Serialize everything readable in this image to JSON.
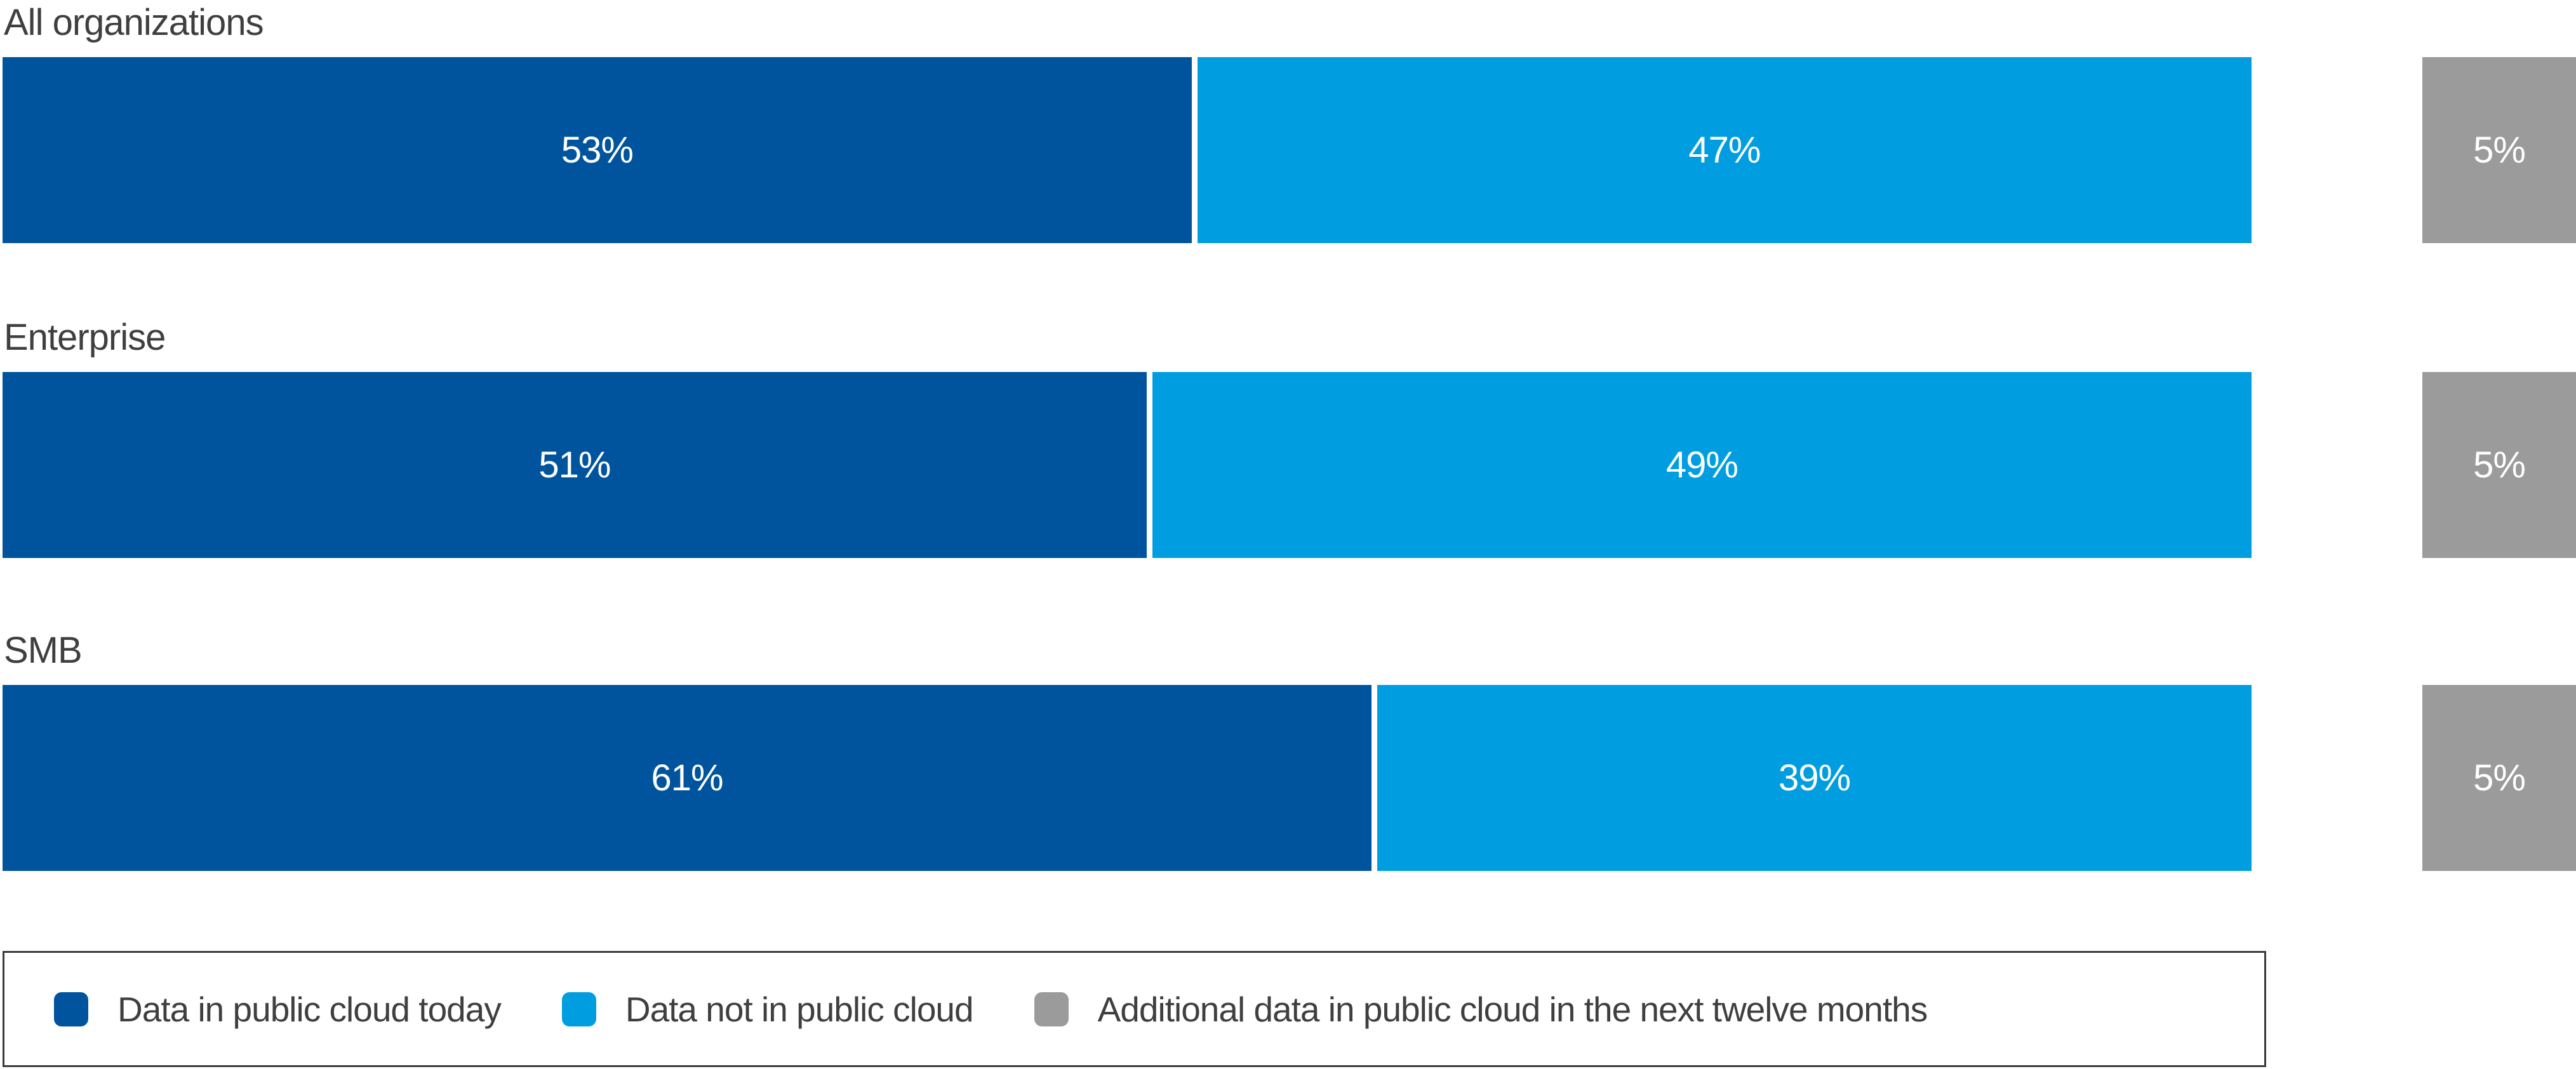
{
  "chart_data": {
    "type": "bar",
    "stacked": true,
    "orientation": "horizontal",
    "categories": [
      "All organizations",
      "Enterprise",
      "SMB"
    ],
    "series": [
      {
        "name": "Data in public cloud today",
        "color": "#00549D",
        "values": [
          53,
          51,
          61
        ]
      },
      {
        "name": "Data not in public cloud",
        "color": "#009EE0",
        "values": [
          47,
          49,
          39
        ]
      },
      {
        "name": "Additional data in public cloud in the next twelve months",
        "color": "#9B9B9B",
        "values": [
          5,
          5,
          5
        ]
      }
    ],
    "value_suffix": "%",
    "value_labels": {
      "primary": [
        "53%",
        "51%",
        "61%"
      ],
      "secondary": [
        "47%",
        "49%",
        "39%"
      ],
      "additional": [
        "5%",
        "5%",
        "5%"
      ]
    },
    "title": "",
    "xlabel": "",
    "ylabel": "",
    "xlim": [
      0,
      100
    ],
    "grid": false,
    "legend_position": "bottom",
    "legend_entries": [
      "Data in public cloud today",
      "Data not in public cloud",
      "Additional data in public cloud in the next twelve months"
    ]
  },
  "colors": {
    "background": "#FFFFFF",
    "category_label_text": "#3F3F3F",
    "value_text": "#FFFFFF",
    "legend_border": "#3A3A3A",
    "series_dark_blue": "#00549D",
    "series_light_blue": "#009EE0",
    "series_gray": "#9B9B9B"
  }
}
